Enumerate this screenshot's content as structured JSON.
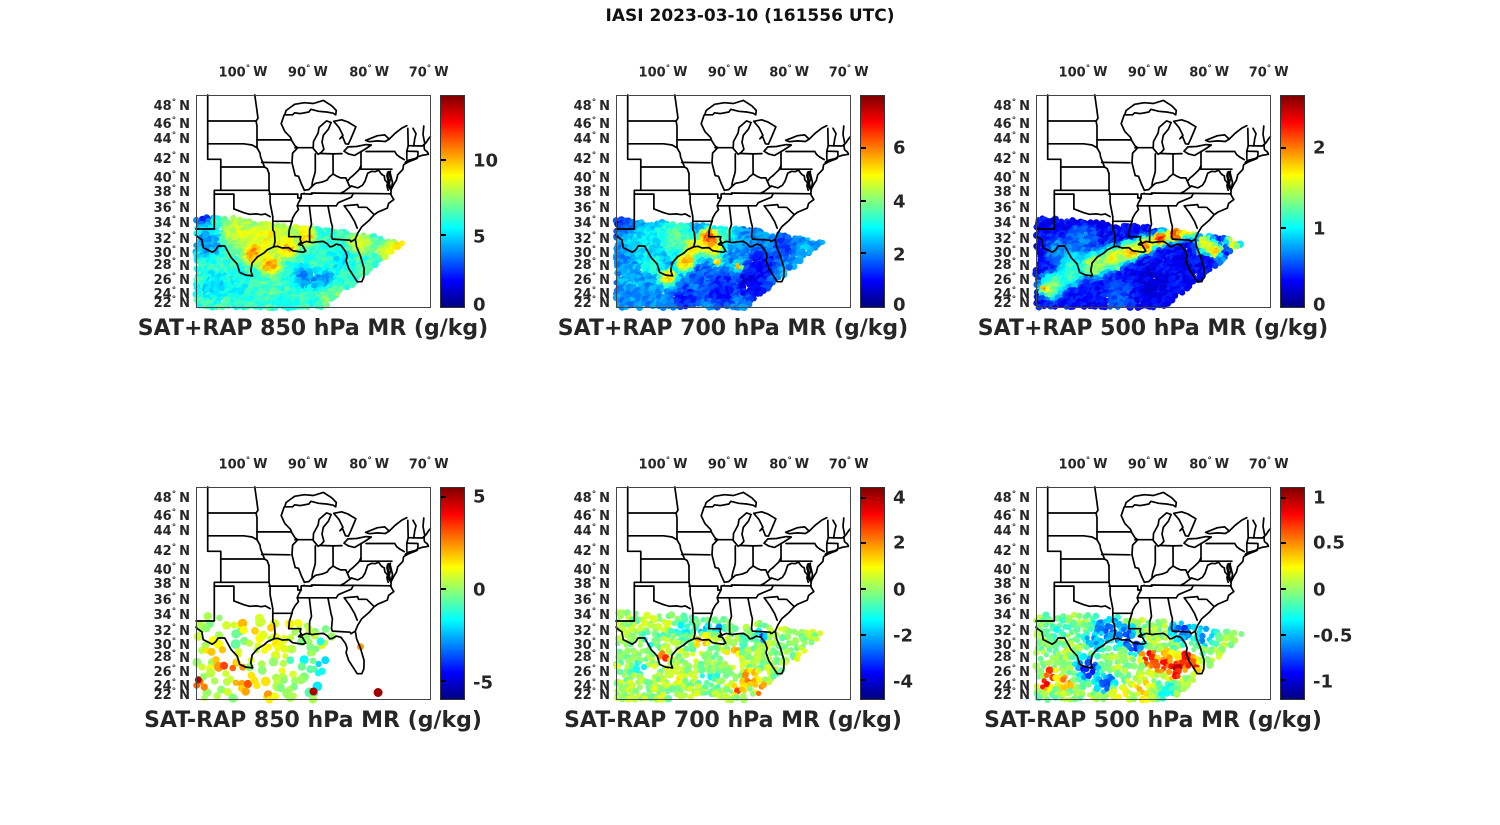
{
  "figure_title": "IASI 2023-03-10 (161556 UTC)",
  "colors": {
    "background": "#ffffff",
    "text": "#262626",
    "map_lines": "#000000",
    "colormap": "jet"
  },
  "axes": {
    "degree": "°",
    "lon_suffix": "W",
    "lat_suffix": "N",
    "lon_ticks": [
      {
        "label": "100",
        "pos": 0.2
      },
      {
        "label": "90",
        "pos": 0.476
      },
      {
        "label": "80",
        "pos": 0.737
      },
      {
        "label": "70",
        "pos": 0.99
      }
    ],
    "lat_ticks": [
      {
        "label": "48",
        "pos": 0.052
      },
      {
        "label": "46",
        "pos": 0.135
      },
      {
        "label": "44",
        "pos": 0.207
      },
      {
        "label": "42",
        "pos": 0.3
      },
      {
        "label": "40",
        "pos": 0.39
      },
      {
        "label": "38",
        "pos": 0.455
      },
      {
        "label": "36",
        "pos": 0.53
      },
      {
        "label": "34",
        "pos": 0.6
      },
      {
        "label": "32",
        "pos": 0.675
      },
      {
        "label": "30",
        "pos": 0.74
      },
      {
        "label": "28",
        "pos": 0.8
      },
      {
        "label": "26",
        "pos": 0.868
      },
      {
        "label": "24",
        "pos": 0.935
      },
      {
        "label": "22",
        "pos": 0.975
      }
    ]
  },
  "chart_data": [
    {
      "id": "sat-plus-rap-850",
      "type": "map-scatter",
      "title": "SAT+RAP 850 hPa MR (g/kg)",
      "row": 0,
      "col": 0,
      "colorbar": {
        "ticks": [
          {
            "label": "10",
            "pos": 0.69
          },
          {
            "label": "5",
            "pos": 0.335
          },
          {
            "label": "0",
            "pos": 0.014
          }
        ]
      },
      "swath": {
        "style": "dense",
        "base": 0.42,
        "polygon": [
          [
            0.0,
            0.575
          ],
          [
            0.08,
            0.565
          ],
          [
            0.3,
            0.6
          ],
          [
            0.6,
            0.635
          ],
          [
            0.886,
            0.69
          ],
          [
            0.545,
            1.0
          ],
          [
            0.0,
            1.0
          ]
        ],
        "features": [
          [
            0.03,
            0.565,
            7,
            0.08
          ],
          [
            0.05,
            0.7,
            10,
            0.25
          ],
          [
            0.08,
            0.9,
            9,
            0.32
          ],
          [
            0.18,
            0.64,
            12,
            0.6
          ],
          [
            0.3,
            0.67,
            13,
            0.65
          ],
          [
            0.245,
            0.75,
            7,
            0.78
          ],
          [
            0.32,
            0.8,
            7,
            0.76
          ],
          [
            0.39,
            0.72,
            7,
            0.74
          ],
          [
            0.47,
            0.665,
            7,
            0.72
          ],
          [
            0.42,
            0.63,
            10,
            0.58
          ],
          [
            0.5,
            0.78,
            10,
            0.42
          ],
          [
            0.47,
            0.85,
            8,
            0.22
          ],
          [
            0.545,
            0.875,
            7,
            0.25
          ],
          [
            0.62,
            0.78,
            8,
            0.35
          ],
          [
            0.58,
            0.95,
            9,
            0.5
          ],
          [
            0.3,
            0.93,
            9,
            0.45
          ],
          [
            0.17,
            0.9,
            8,
            0.38
          ],
          [
            0.7,
            0.7,
            8,
            0.6
          ],
          [
            0.815,
            0.735,
            7,
            0.62
          ],
          [
            0.87,
            0.715,
            5,
            0.68
          ],
          [
            0.75,
            0.8,
            7,
            0.45
          ]
        ],
        "holes": [],
        "extra_dots": []
      }
    },
    {
      "id": "sat-plus-rap-700",
      "type": "map-scatter",
      "title": "SAT+RAP 700 hPa MR (g/kg)",
      "row": 0,
      "col": 1,
      "colorbar": {
        "ticks": [
          {
            "label": "6",
            "pos": 0.75
          },
          {
            "label": "4",
            "pos": 0.5
          },
          {
            "label": "2",
            "pos": 0.25
          },
          {
            "label": "0",
            "pos": 0.014
          }
        ]
      },
      "swath": {
        "style": "dense",
        "base": 0.27,
        "polygon": [
          [
            0.0,
            0.585
          ],
          [
            0.3,
            0.605
          ],
          [
            0.6,
            0.635
          ],
          [
            0.886,
            0.69
          ],
          [
            0.545,
            1.0
          ],
          [
            0.0,
            1.0
          ]
        ],
        "features": [
          [
            0.03,
            0.6,
            8,
            0.15
          ],
          [
            0.12,
            0.7,
            12,
            0.38
          ],
          [
            0.25,
            0.67,
            13,
            0.48
          ],
          [
            0.33,
            0.72,
            7,
            0.7
          ],
          [
            0.3,
            0.79,
            7,
            0.78
          ],
          [
            0.22,
            0.86,
            6,
            0.74
          ],
          [
            0.4,
            0.67,
            6,
            0.92
          ],
          [
            0.41,
            0.71,
            8,
            0.76
          ],
          [
            0.47,
            0.645,
            7,
            0.45
          ],
          [
            0.52,
            0.81,
            3,
            0.84
          ],
          [
            0.435,
            0.79,
            3,
            0.78
          ],
          [
            0.36,
            0.85,
            9,
            0.2
          ],
          [
            0.45,
            0.92,
            11,
            0.12
          ],
          [
            0.58,
            0.88,
            11,
            0.08
          ],
          [
            0.63,
            0.79,
            9,
            0.12
          ],
          [
            0.72,
            0.72,
            8,
            0.18
          ],
          [
            0.8,
            0.715,
            6,
            0.3
          ],
          [
            0.3,
            0.96,
            9,
            0.14
          ],
          [
            0.15,
            0.8,
            8,
            0.42
          ],
          [
            0.07,
            0.88,
            8,
            0.3
          ]
        ],
        "holes": [],
        "extra_dots": []
      }
    },
    {
      "id": "sat-plus-rap-500",
      "type": "map-scatter",
      "title": "SAT+RAP 500 hPa MR (g/kg)",
      "row": 0,
      "col": 2,
      "colorbar": {
        "ticks": [
          {
            "label": "2",
            "pos": 0.75
          },
          {
            "label": "1",
            "pos": 0.37
          },
          {
            "label": "0",
            "pos": 0.014
          }
        ]
      },
      "swath": {
        "style": "dense",
        "base": 0.13,
        "polygon": [
          [
            0.0,
            0.575
          ],
          [
            0.3,
            0.6
          ],
          [
            0.6,
            0.635
          ],
          [
            0.886,
            0.69
          ],
          [
            0.545,
            1.0
          ],
          [
            0.0,
            1.0
          ]
        ],
        "features": [
          [
            0.07,
            0.9,
            9,
            0.55
          ],
          [
            0.15,
            0.84,
            9,
            0.5
          ],
          [
            0.25,
            0.8,
            9,
            0.62
          ],
          [
            0.33,
            0.77,
            8,
            0.7
          ],
          [
            0.4,
            0.74,
            7,
            0.78
          ],
          [
            0.47,
            0.71,
            6,
            0.85
          ],
          [
            0.53,
            0.68,
            5,
            0.95
          ],
          [
            0.59,
            0.655,
            6,
            0.88
          ],
          [
            0.65,
            0.635,
            6,
            0.8
          ],
          [
            0.72,
            0.7,
            6,
            0.72
          ],
          [
            0.76,
            0.735,
            5,
            0.78
          ],
          [
            0.84,
            0.69,
            5,
            0.72
          ],
          [
            0.2,
            0.68,
            10,
            0.25
          ],
          [
            0.1,
            0.73,
            8,
            0.3
          ],
          [
            0.5,
            0.88,
            12,
            0.1
          ],
          [
            0.65,
            0.8,
            9,
            0.12
          ],
          [
            0.04,
            0.915,
            3,
            0.97
          ],
          [
            0.35,
            0.95,
            10,
            0.22
          ],
          [
            0.8,
            0.8,
            6,
            0.3
          ],
          [
            0.15,
            0.78,
            8,
            0.4
          ]
        ],
        "holes": [],
        "extra_dots": []
      }
    },
    {
      "id": "sat-minus-rap-850",
      "type": "map-scatter",
      "title": "SAT-RAP 850 hPa MR (g/kg)",
      "row": 1,
      "col": 0,
      "colorbar": {
        "ticks": [
          {
            "label": "5",
            "pos": 0.955
          },
          {
            "label": "0",
            "pos": 0.515
          },
          {
            "label": "-5",
            "pos": 0.08
          }
        ]
      },
      "swath": {
        "style": "dots",
        "base": 0.55,
        "polygon": [
          [
            0.0,
            0.6
          ],
          [
            0.3,
            0.615
          ],
          [
            0.52,
            0.645
          ],
          [
            0.6,
            0.68
          ],
          [
            0.56,
            0.8
          ],
          [
            0.52,
            1.0
          ],
          [
            0.0,
            1.0
          ]
        ],
        "features": [
          [
            0.22,
            0.63,
            13,
            0.66
          ],
          [
            0.38,
            0.64,
            11,
            0.68
          ],
          [
            0.45,
            0.7,
            11,
            0.55
          ],
          [
            0.18,
            0.7,
            8,
            0.42
          ],
          [
            0.13,
            0.82,
            7,
            0.88
          ],
          [
            0.18,
            0.87,
            6,
            0.9
          ],
          [
            0.22,
            0.92,
            7,
            0.78
          ],
          [
            0.3,
            0.95,
            6,
            0.8
          ],
          [
            0.02,
            0.93,
            3,
            0.97
          ],
          [
            0.45,
            0.82,
            9,
            0.4
          ],
          [
            0.55,
            0.84,
            7,
            0.25
          ],
          [
            0.58,
            0.8,
            5,
            0.1
          ],
          [
            0.5,
            0.93,
            9,
            0.38
          ],
          [
            0.44,
            0.86,
            4,
            0.68
          ],
          [
            0.33,
            0.8,
            10,
            0.58
          ],
          [
            0.08,
            0.75,
            6,
            0.7
          ],
          [
            0.35,
            0.7,
            8,
            0.6
          ]
        ],
        "holes": [],
        "extra_dots": [
          [
            0.775,
            0.965,
            4.5,
            0.97
          ],
          [
            0.53,
            0.725,
            4,
            0.4
          ],
          [
            0.5,
            0.96,
            4,
            0.95
          ],
          [
            0.01,
            0.905,
            3.5,
            0.95
          ],
          [
            0.035,
            0.94,
            3.5,
            0.75
          ],
          [
            0.7,
            0.75,
            3.5,
            0.72
          ]
        ]
      }
    },
    {
      "id": "sat-minus-rap-700",
      "type": "map-scatter",
      "title": "SAT-RAP 700 hPa MR (g/kg)",
      "row": 1,
      "col": 1,
      "colorbar": {
        "ticks": [
          {
            "label": "4",
            "pos": 0.95
          },
          {
            "label": "2",
            "pos": 0.735
          },
          {
            "label": "0",
            "pos": 0.515
          },
          {
            "label": "-2",
            "pos": 0.3
          },
          {
            "label": "-4",
            "pos": 0.085
          }
        ]
      },
      "swath": {
        "style": "speckle",
        "base": 0.53,
        "polygon": [
          [
            0.0,
            0.585
          ],
          [
            0.3,
            0.605
          ],
          [
            0.6,
            0.635
          ],
          [
            0.886,
            0.69
          ],
          [
            0.58,
            1.0
          ],
          [
            0.0,
            1.0
          ]
        ],
        "features": [
          [
            0.3,
            0.67,
            8,
            0.4
          ],
          [
            0.37,
            0.66,
            4,
            0.22
          ],
          [
            0.44,
            0.67,
            4,
            0.25
          ],
          [
            0.36,
            0.72,
            4,
            0.78
          ],
          [
            0.2,
            0.8,
            4,
            0.85
          ],
          [
            0.15,
            0.72,
            7,
            0.42
          ],
          [
            0.5,
            0.78,
            4,
            0.8
          ],
          [
            0.1,
            0.85,
            5,
            0.3
          ],
          [
            0.55,
            0.73,
            5,
            0.4
          ],
          [
            0.62,
            0.7,
            4,
            0.18
          ],
          [
            0.57,
            0.9,
            5,
            0.85
          ],
          [
            0.62,
            0.95,
            5,
            0.78
          ],
          [
            0.52,
            0.95,
            4,
            0.82
          ],
          [
            0.4,
            0.9,
            7,
            0.42
          ],
          [
            0.25,
            0.88,
            7,
            0.62
          ],
          [
            0.47,
            0.86,
            5,
            0.55
          ],
          [
            0.7,
            0.75,
            5,
            0.5
          ],
          [
            0.78,
            0.72,
            5,
            0.45
          ]
        ],
        "holes": [
          [
            0.34,
            0.79,
            6
          ],
          [
            0.47,
            0.8,
            5
          ],
          [
            0.55,
            0.635,
            4
          ],
          [
            0.42,
            0.735,
            3
          ]
        ],
        "extra_dots": []
      }
    },
    {
      "id": "sat-minus-rap-500",
      "type": "map-scatter",
      "title": "SAT-RAP 500 hPa MR (g/kg)",
      "row": 1,
      "col": 2,
      "colorbar": {
        "ticks": [
          {
            "label": "1",
            "pos": 0.95
          },
          {
            "label": "0.5",
            "pos": 0.735
          },
          {
            "label": "0",
            "pos": 0.515
          },
          {
            "label": "-0.5",
            "pos": 0.3
          },
          {
            "label": "-1",
            "pos": 0.085
          }
        ]
      },
      "swath": {
        "style": "speckle",
        "base": 0.52,
        "polygon": [
          [
            0.0,
            0.585
          ],
          [
            0.3,
            0.605
          ],
          [
            0.6,
            0.635
          ],
          [
            0.886,
            0.69
          ],
          [
            0.58,
            1.0
          ],
          [
            0.0,
            1.0
          ]
        ],
        "features": [
          [
            0.3,
            0.66,
            9,
            0.2
          ],
          [
            0.38,
            0.7,
            8,
            0.18
          ],
          [
            0.42,
            0.74,
            6,
            0.08
          ],
          [
            0.25,
            0.72,
            7,
            0.25
          ],
          [
            0.22,
            0.85,
            8,
            0.05
          ],
          [
            0.3,
            0.92,
            7,
            0.18
          ],
          [
            0.62,
            0.67,
            8,
            0.18
          ],
          [
            0.72,
            0.7,
            7,
            0.22
          ],
          [
            0.48,
            0.8,
            5,
            0.97
          ],
          [
            0.52,
            0.84,
            5,
            0.85
          ],
          [
            0.6,
            0.86,
            7,
            0.95
          ],
          [
            0.55,
            0.83,
            5,
            0.85
          ],
          [
            0.64,
            0.8,
            5,
            0.88
          ],
          [
            0.67,
            0.84,
            4,
            0.97
          ],
          [
            0.55,
            0.78,
            4,
            0.78
          ],
          [
            0.45,
            0.95,
            9,
            0.65
          ],
          [
            0.35,
            0.97,
            7,
            0.68
          ],
          [
            0.06,
            0.88,
            4,
            0.88
          ],
          [
            0.04,
            0.93,
            4,
            0.97
          ],
          [
            0.12,
            0.92,
            5,
            0.78
          ],
          [
            0.55,
            0.95,
            7,
            0.38
          ],
          [
            0.62,
            0.92,
            6,
            0.55
          ],
          [
            0.1,
            0.65,
            8,
            0.4
          ]
        ],
        "holes": [
          [
            0.21,
            0.77,
            3
          ],
          [
            0.31,
            0.74,
            3
          ]
        ],
        "extra_dots": []
      }
    }
  ]
}
